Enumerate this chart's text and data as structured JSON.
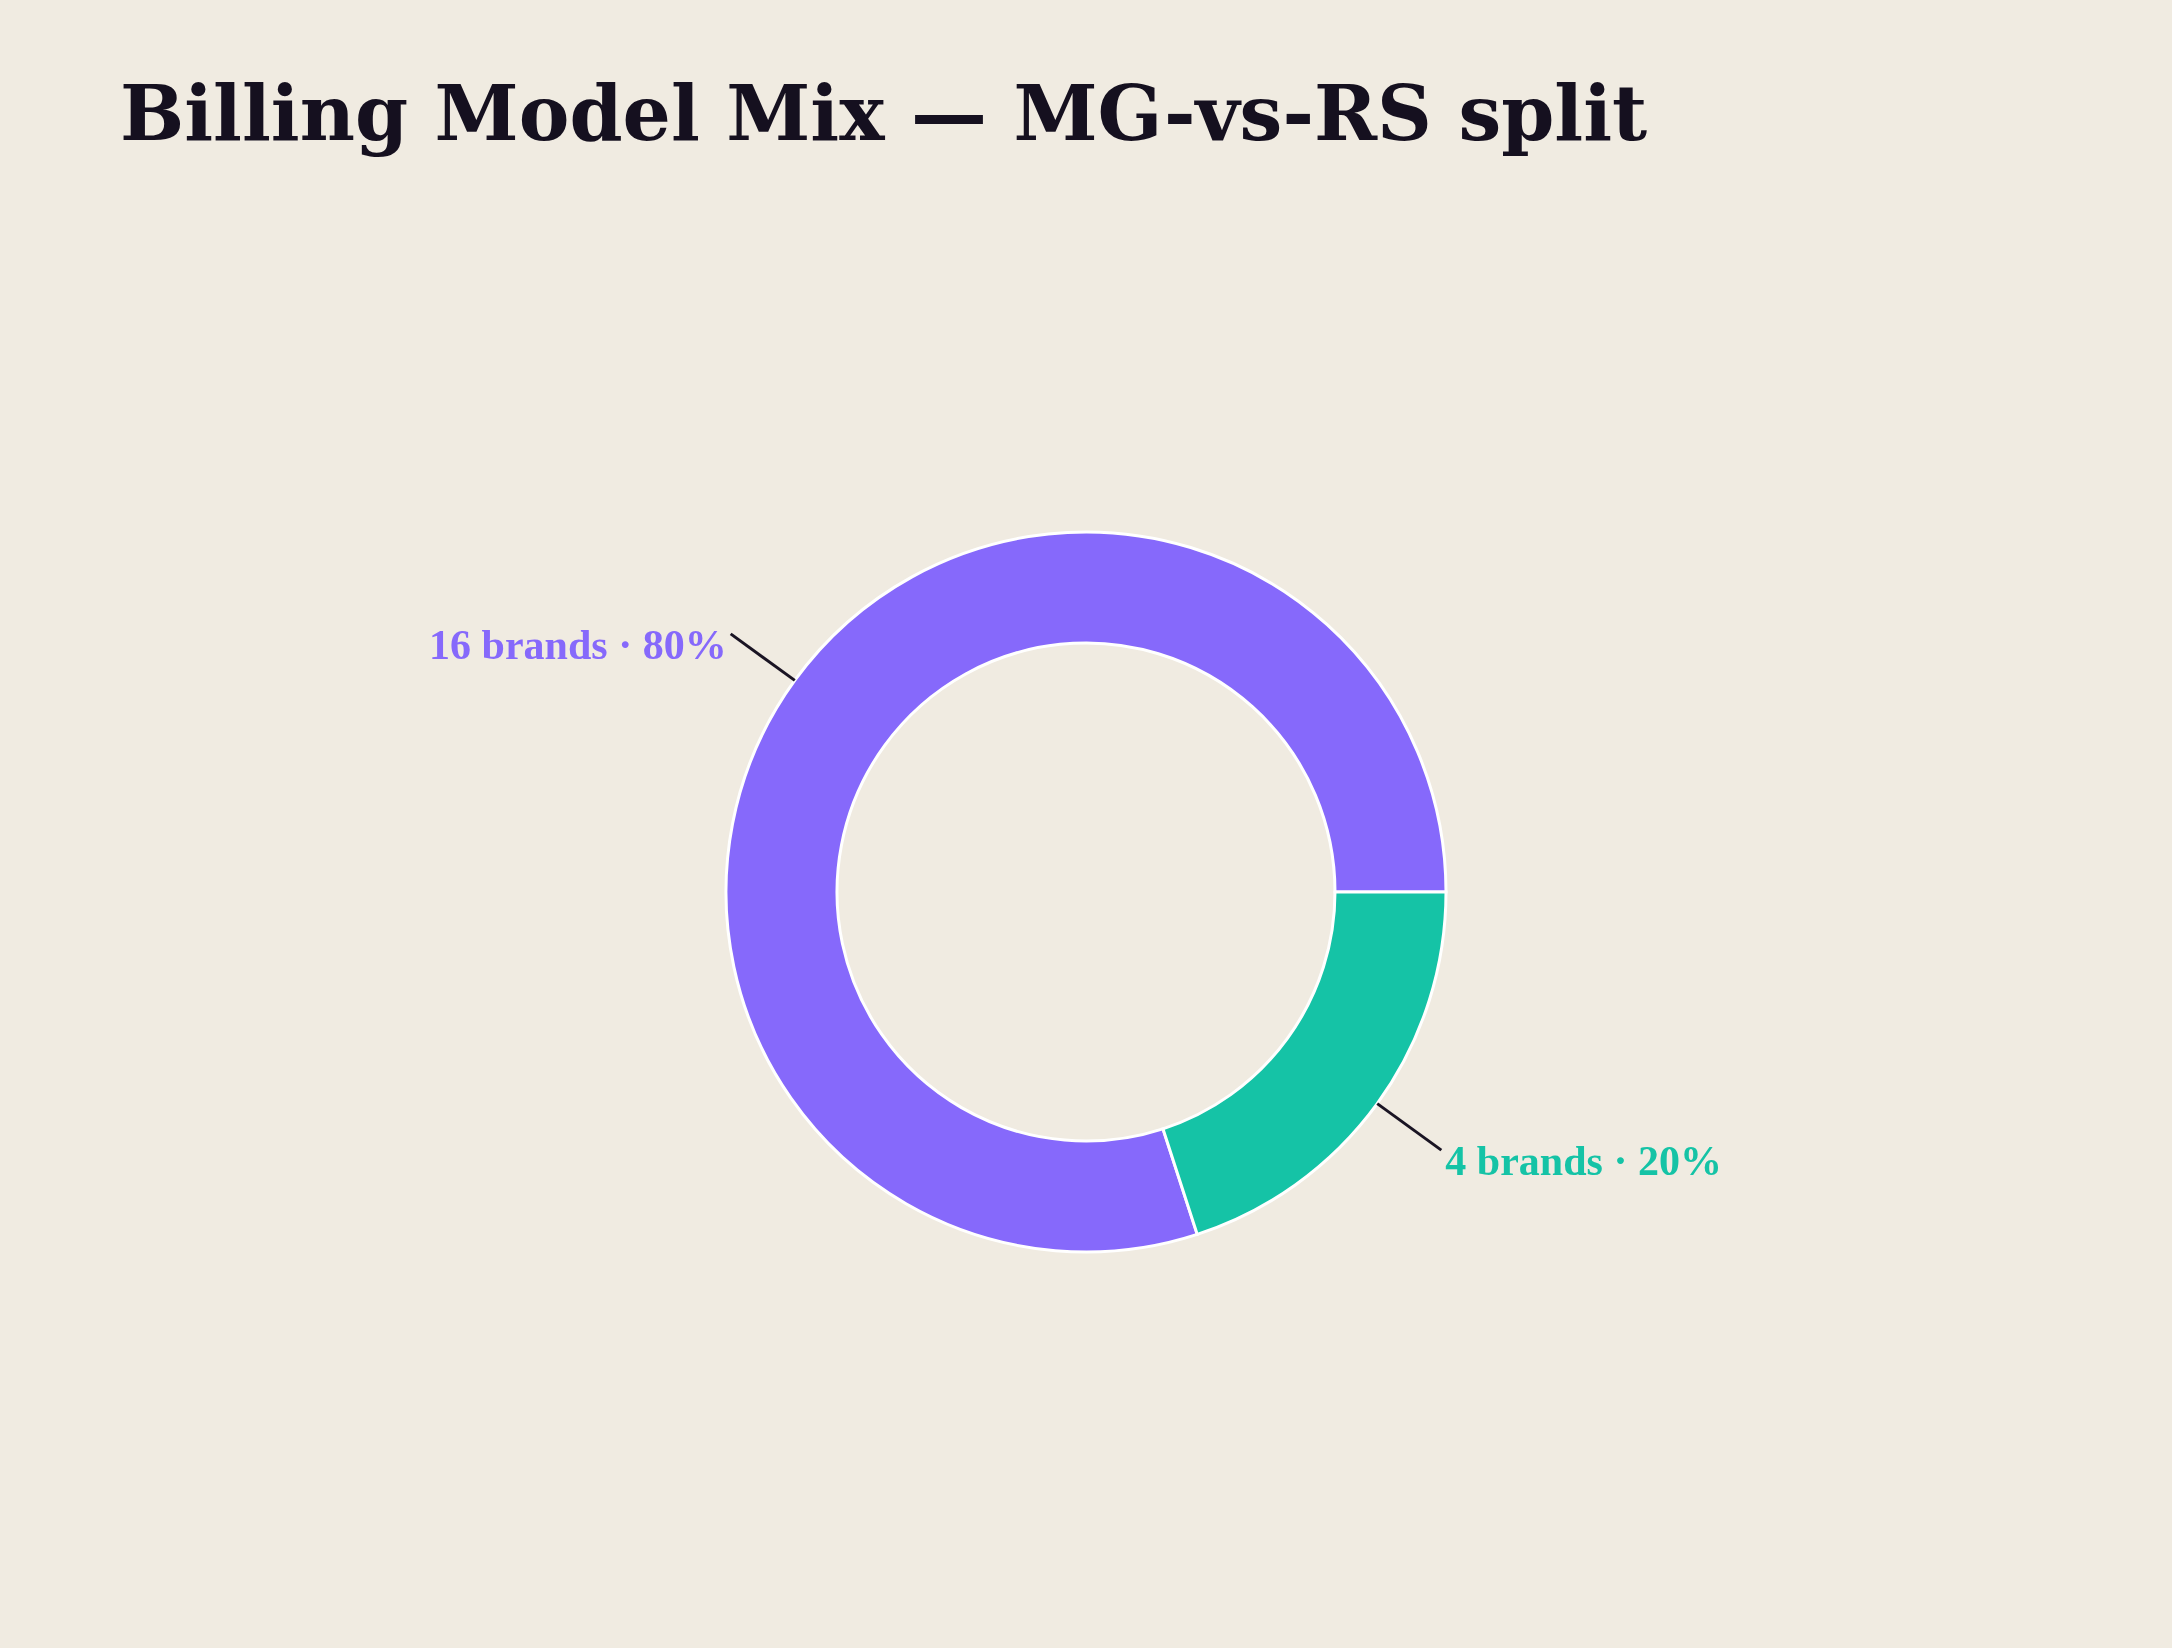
{
  "chart_data": {
    "type": "donut",
    "title": "Billing Model Mix — MG-vs-RS split",
    "categories": [
      "16 brands · 80%",
      "4 brands · 20%"
    ],
    "values": [
      80,
      20
    ],
    "colors": [
      "#8669fb",
      "#15c3a6"
    ]
  }
}
